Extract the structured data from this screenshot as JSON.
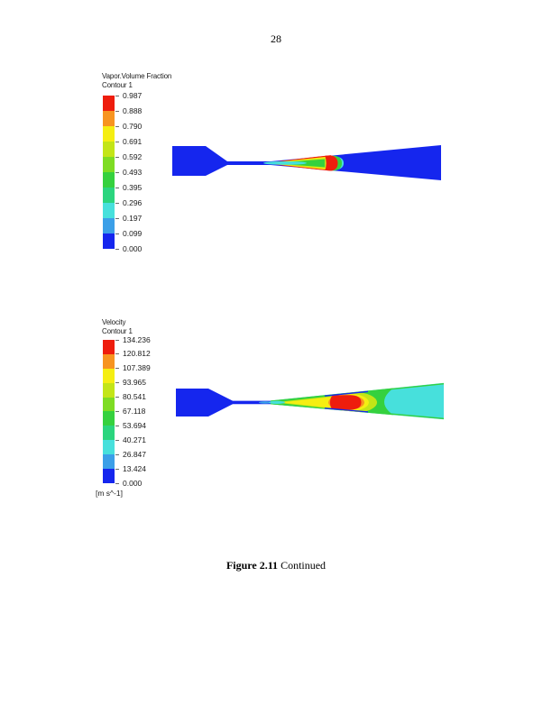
{
  "page_number": "28",
  "band_colors": [
    "#ee1d0d",
    "#f79420",
    "#f5ee12",
    "#c3e517",
    "#7edc23",
    "#35d13e",
    "#2bd57e",
    "#47e0dc",
    "#3b9fe8",
    "#1526ee"
  ],
  "vapor_legend": {
    "title": "Vapor.Volume Fraction",
    "subtitle": "Contour 1",
    "labels": [
      "0.987",
      "0.888",
      "0.790",
      "0.691",
      "0.592",
      "0.493",
      "0.395",
      "0.296",
      "0.197",
      "0.099",
      "0.000"
    ]
  },
  "velocity_legend": {
    "title": "Velocity",
    "subtitle": "Contour 1",
    "labels": [
      "134.236",
      "120.812",
      "107.389",
      "93.965",
      "80.541",
      "67.118",
      "53.694",
      "40.271",
      "26.847",
      "13.424",
      "0.000"
    ],
    "unit": "[m s^-1]"
  },
  "caption": {
    "figure_label": "Figure 2.11",
    "figure_text": " Continued"
  }
}
